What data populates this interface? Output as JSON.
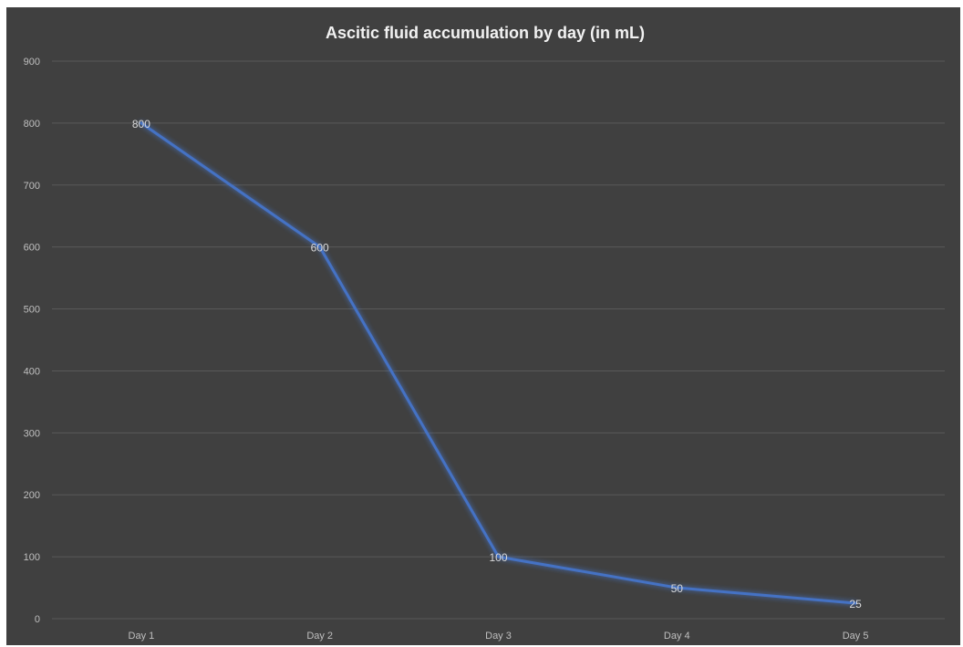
{
  "chart_data": {
    "type": "line",
    "title": "Ascitic fluid accumulation by day (in mL)",
    "categories": [
      "Day 1",
      "Day 2",
      "Day 3",
      "Day 4",
      "Day 5"
    ],
    "series": [
      {
        "values": [
          800,
          600,
          100,
          50,
          25
        ]
      }
    ],
    "data_labels": [
      "800",
      "600",
      "100",
      "50",
      "25"
    ],
    "y_ticks": [
      "0",
      "100",
      "200",
      "300",
      "400",
      "500",
      "600",
      "700",
      "800",
      "900"
    ],
    "ylim": [
      0,
      900
    ],
    "grid": true,
    "legend": "none",
    "colors": {
      "background": "#404040",
      "line": "#4472c4",
      "gridline": "#595959",
      "text": "#d9d9d9"
    }
  }
}
